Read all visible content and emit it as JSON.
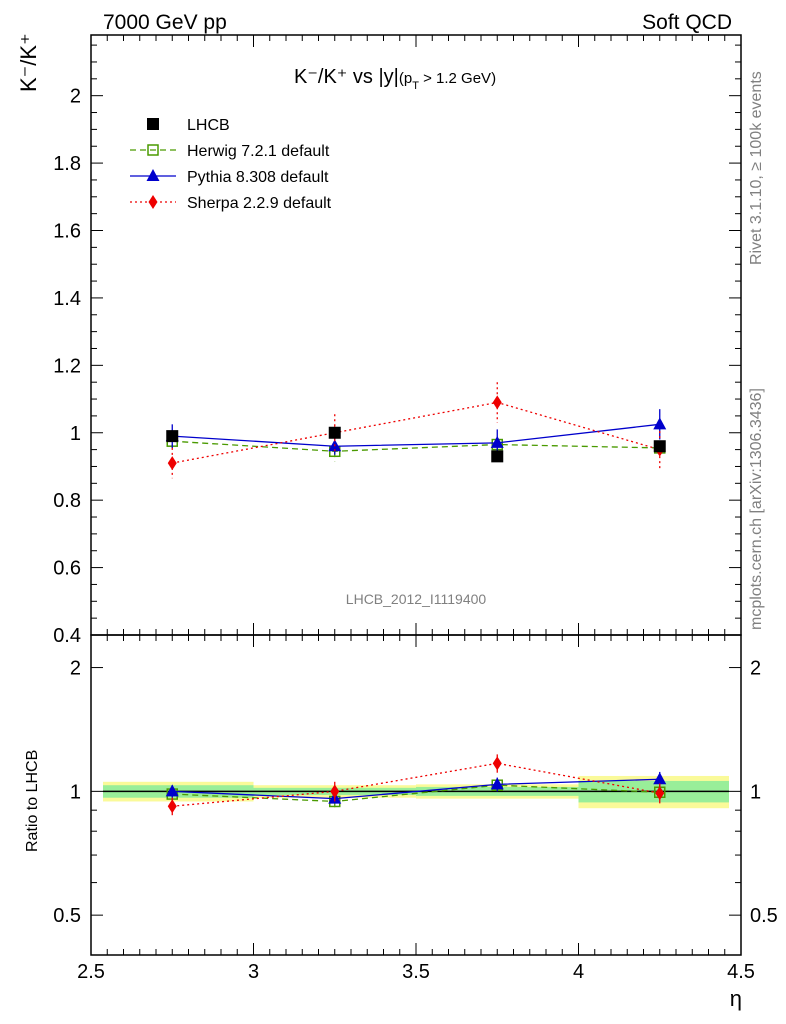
{
  "header": {
    "left": "7000 GeV pp",
    "right": "Soft QCD"
  },
  "side_text": {
    "rivet": "Rivet 3.1.10, ≥ 100k events",
    "mcplots": "mcplots.cern.ch [arXiv:1306.3436]"
  },
  "chart_data": {
    "type": "scatter",
    "title_main": "K⁻/K⁺ vs |y|",
    "title_sub": "(p",
    "title_sub_idx": "T",
    "title_sub_tail": " > 1.2 GeV)",
    "ylabel": "K⁻/K⁺",
    "ratio_ylabel": "Ratio to LHCB",
    "xlabel": "η",
    "watermark": "LHCB_2012_I1119400",
    "xlim": [
      2.5,
      4.5
    ],
    "ylim": [
      0.4,
      2.18
    ],
    "ratio_ylim": [
      0.4,
      2.4
    ],
    "ratio_log": true,
    "x_ticks": [
      "2.5",
      "3",
      "3.5",
      "4",
      "4.5"
    ],
    "y_ticks": [
      "0.4",
      "0.6",
      "0.8",
      "1",
      "1.2",
      "1.4",
      "1.6",
      "1.8",
      "2"
    ],
    "ratio_ticks": [
      "0.5",
      "1",
      "2"
    ],
    "x": [
      2.75,
      3.25,
      3.75,
      4.25
    ],
    "series": [
      {
        "name": "LHCB",
        "color": "#000000",
        "marker": "filled-square",
        "line": "none",
        "values": [
          0.99,
          1.0,
          0.93,
          0.96
        ],
        "err": [
          0.012,
          0.01,
          0.015,
          0.012
        ],
        "band_inner": [
          0.035,
          0.02,
          0.025,
          0.06
        ],
        "band_outer": [
          0.055,
          0.035,
          0.04,
          0.09
        ]
      },
      {
        "name": "Herwig 7.2.1 default",
        "color": "#4a9a00",
        "marker": "open-square",
        "line": "dashed",
        "values": [
          0.975,
          0.945,
          0.965,
          0.955
        ],
        "err": [
          0.02,
          0.03,
          0.02,
          0.02
        ]
      },
      {
        "name": "Pythia 8.308 default",
        "color": "#0000cc",
        "marker": "triangle",
        "line": "solid",
        "values": [
          0.99,
          0.96,
          0.97,
          1.025
        ],
        "err": [
          0.035,
          0.025,
          0.04,
          0.045
        ]
      },
      {
        "name": "Sherpa 2.2.9 default",
        "color": "#ee0000",
        "marker": "diamond",
        "line": "dotted",
        "values": [
          0.91,
          1.0,
          1.09,
          0.95
        ],
        "err": [
          0.045,
          0.055,
          0.06,
          0.055
        ]
      }
    ],
    "ratio_series": [
      {
        "name": "Herwig 7.2.1 default",
        "values": [
          0.985,
          0.945,
          1.035,
          0.995
        ],
        "err": [
          0.02,
          0.03,
          0.02,
          0.02
        ]
      },
      {
        "name": "Pythia 8.308 default",
        "values": [
          1.0,
          0.96,
          1.04,
          1.07
        ],
        "err": [
          0.035,
          0.025,
          0.04,
          0.045
        ]
      },
      {
        "name": "Sherpa 2.2.9 default",
        "values": [
          0.92,
          1.0,
          1.17,
          0.99
        ],
        "err": [
          0.045,
          0.055,
          0.06,
          0.055
        ]
      }
    ]
  }
}
